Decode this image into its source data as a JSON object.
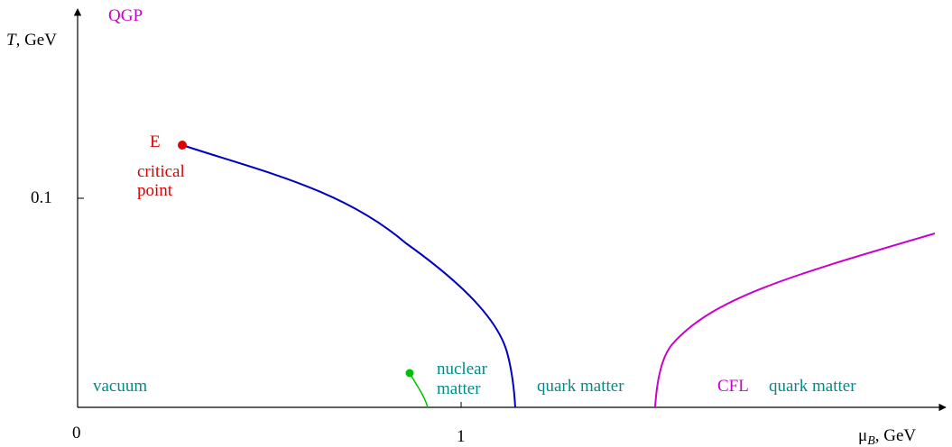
{
  "axes": {
    "y_label_italic": "T",
    "y_label_rest": ", GeV",
    "x_label_symbol": "μ",
    "x_label_sub": "B",
    "x_label_rest": ", GeV",
    "origin_label": "0",
    "x_tick_label": "1",
    "y_tick_label": "0.1"
  },
  "regions": {
    "qgp": "QGP",
    "vacuum": "vacuum",
    "nuclear_line1": "nuclear",
    "nuclear_line2": "matter",
    "quark_matter": "quark matter",
    "cfl": "CFL",
    "cfl_quark_matter": "quark matter"
  },
  "critical_point": {
    "label": "E",
    "desc_line1": "critical",
    "desc_line2": "point"
  },
  "colors": {
    "axis": "#000000",
    "transition_line": "#0000c0",
    "cfl_line": "#cc00cc",
    "critical_point": "#e00000",
    "nuclear_line": "#00c000",
    "region_text": "#008b8b",
    "qgp_text": "#cc00cc"
  }
}
